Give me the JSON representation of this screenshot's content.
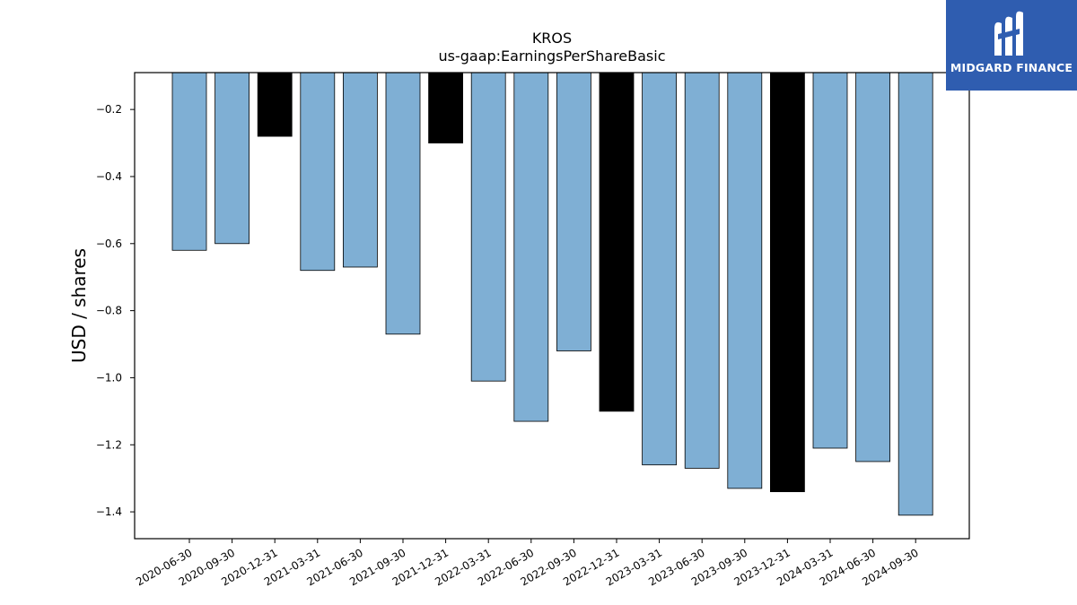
{
  "brand": {
    "name": "MIDGARD FINANCE",
    "bg_color": "#2f5db0"
  },
  "colors": {
    "bar_default": "#7fafd4",
    "bar_highlight": "#000000"
  },
  "chart_data": {
    "type": "bar",
    "title": "KROS",
    "subtitle": "us-gaap:EarningsPerShareBasic",
    "xlabel": "",
    "ylabel": "USD / shares",
    "ylim": [
      -1.48,
      -0.09
    ],
    "yticks": [
      -0.2,
      -0.4,
      -0.6,
      -0.8,
      -1.0,
      -1.2,
      -1.4
    ],
    "ytick_labels": [
      "−0.2",
      "−0.4",
      "−0.6",
      "−0.8",
      "−1.0",
      "−1.2",
      "−1.4"
    ],
    "grid": false,
    "categories": [
      "2020-06-30",
      "2020-09-30",
      "2020-12-31",
      "2021-03-31",
      "2021-06-30",
      "2021-09-30",
      "2021-12-31",
      "2022-03-31",
      "2022-06-30",
      "2022-09-30",
      "2022-12-31",
      "2023-03-31",
      "2023-06-30",
      "2023-09-30",
      "2023-12-31",
      "2024-03-31",
      "2024-06-30",
      "2024-09-30"
    ],
    "values": [
      -0.62,
      -0.6,
      -0.28,
      -0.68,
      -0.67,
      -0.87,
      -0.3,
      -1.01,
      -1.13,
      -0.92,
      -1.1,
      -1.26,
      -1.27,
      -1.33,
      -1.34,
      -1.21,
      -1.25,
      -1.41
    ],
    "highlight": [
      false,
      false,
      true,
      false,
      false,
      false,
      true,
      false,
      false,
      false,
      true,
      false,
      false,
      false,
      true,
      false,
      false,
      false
    ]
  }
}
